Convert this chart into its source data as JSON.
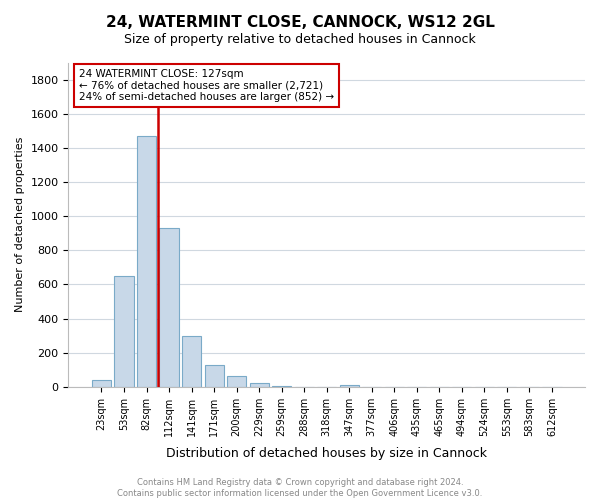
{
  "title": "24, WATERMINT CLOSE, CANNOCK, WS12 2GL",
  "subtitle": "Size of property relative to detached houses in Cannock",
  "xlabel": "Distribution of detached houses by size in Cannock",
  "ylabel": "Number of detached properties",
  "bar_color": "#c8d8e8",
  "bar_edge_color": "#7aaac8",
  "bin_labels": [
    "23sqm",
    "53sqm",
    "82sqm",
    "112sqm",
    "141sqm",
    "171sqm",
    "200sqm",
    "229sqm",
    "259sqm",
    "288sqm",
    "318sqm",
    "347sqm",
    "377sqm",
    "406sqm",
    "435sqm",
    "465sqm",
    "494sqm",
    "524sqm",
    "553sqm",
    "583sqm",
    "612sqm"
  ],
  "bar_heights": [
    40,
    650,
    1470,
    930,
    295,
    130,
    65,
    22,
    5,
    0,
    0,
    10,
    0,
    0,
    0,
    0,
    0,
    0,
    0,
    0,
    0
  ],
  "ylim": [
    0,
    1900
  ],
  "yticks": [
    0,
    200,
    400,
    600,
    800,
    1000,
    1200,
    1400,
    1600,
    1800
  ],
  "vline_x": 2.5,
  "vline_color": "#cc0000",
  "annotation_text": "24 WATERMINT CLOSE: 127sqm\n← 76% of detached houses are smaller (2,721)\n24% of semi-detached houses are larger (852) →",
  "footer_text": "Contains HM Land Registry data © Crown copyright and database right 2024.\nContains public sector information licensed under the Open Government Licence v3.0.",
  "background_color": "#ffffff",
  "grid_color": "#d0d8e0"
}
